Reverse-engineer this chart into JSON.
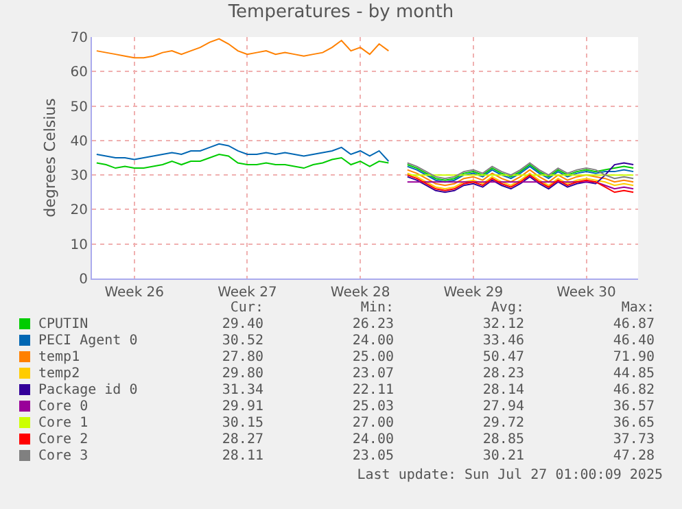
{
  "chart_data": {
    "type": "line",
    "title": "Temperatures - by month",
    "ylabel": "degrees Celsius",
    "categories": [
      null,
      null,
      null,
      null,
      "Week 26",
      null,
      null,
      null,
      null,
      null,
      null,
      null,
      null,
      null,
      null,
      null,
      "Week 27",
      null,
      null,
      null,
      null,
      null,
      null,
      null,
      null,
      null,
      null,
      null,
      "Week 28",
      null,
      null,
      null,
      null,
      null,
      null,
      null,
      null,
      null,
      null,
      null,
      "Week 29",
      null,
      null,
      null,
      null,
      null,
      null,
      null,
      null,
      null,
      null,
      null,
      "Week 30",
      null,
      null,
      null,
      null,
      null
    ],
    "ylim": [
      0,
      70
    ],
    "yticks": [
      0,
      10,
      20,
      30,
      40,
      50,
      60,
      70
    ],
    "grid": true,
    "legend": "bottom",
    "series": [
      {
        "name": "CPUTIN",
        "color": "#00cc00",
        "values": [
          33.5,
          33,
          32,
          32.5,
          32,
          32,
          32.5,
          33,
          34,
          33,
          34,
          34,
          35,
          36,
          35.5,
          33.5,
          33,
          33,
          33.5,
          33,
          33,
          32.5,
          32,
          33,
          33.5,
          34.5,
          35,
          33,
          34,
          32.5,
          34,
          33.5,
          null,
          33,
          32,
          30.5,
          29,
          28.5,
          29,
          30.5,
          31,
          30,
          32,
          30.5,
          29.5,
          31,
          33,
          31,
          29.5,
          31.5,
          30,
          31,
          31.5,
          31,
          31.5,
          32,
          32.5,
          32
        ]
      },
      {
        "name": "PECI Agent 0",
        "color": "#0066b3",
        "values": [
          36,
          35.5,
          35,
          35,
          34.5,
          35,
          35.5,
          36,
          36.5,
          36,
          37,
          37,
          38,
          39,
          38.5,
          37,
          36,
          36,
          36.5,
          36,
          36.5,
          36,
          35.5,
          36,
          36.5,
          37,
          38,
          36,
          37,
          35.5,
          37,
          34,
          null,
          32.5,
          31.5,
          30,
          28.5,
          28,
          28.5,
          30,
          30.5,
          29.5,
          31.5,
          30,
          29,
          30.5,
          32.5,
          30.5,
          29,
          31,
          29.5,
          30.5,
          31,
          30.5,
          31,
          31,
          31.5,
          31
        ]
      },
      {
        "name": "temp1",
        "color": "#ff8000",
        "values": [
          66,
          65.5,
          65,
          64.5,
          64,
          64,
          64.5,
          65.5,
          66,
          65,
          66,
          67,
          68.5,
          69.5,
          68,
          66,
          65,
          65.5,
          66,
          65,
          65.5,
          65,
          64.5,
          65,
          65.5,
          67,
          69,
          66,
          67,
          65,
          68,
          66,
          null,
          31.5,
          30.5,
          29,
          27.5,
          27,
          27.5,
          29,
          29.5,
          28.5,
          30.5,
          29,
          28,
          29.5,
          31.5,
          29.5,
          28,
          30,
          28.5,
          29.5,
          30,
          29.5,
          29,
          28,
          28.5,
          28
        ]
      },
      {
        "name": "temp2",
        "color": "#ffcc00",
        "values": [
          null,
          null,
          null,
          null,
          null,
          null,
          null,
          null,
          null,
          null,
          null,
          null,
          null,
          null,
          null,
          null,
          null,
          null,
          null,
          null,
          null,
          null,
          null,
          null,
          null,
          null,
          null,
          null,
          null,
          null,
          null,
          null,
          null,
          30.5,
          29.5,
          28,
          26.5,
          26,
          26.5,
          28,
          28.5,
          27.5,
          29.5,
          28,
          27,
          28.5,
          30.5,
          28.5,
          27,
          29,
          27.5,
          28.5,
          29,
          28.5,
          28,
          27,
          27.5,
          27
        ]
      },
      {
        "name": "Package id 0",
        "color": "#330099",
        "values": [
          null,
          null,
          null,
          null,
          null,
          null,
          null,
          null,
          null,
          null,
          null,
          null,
          null,
          null,
          null,
          null,
          null,
          null,
          null,
          null,
          null,
          null,
          null,
          null,
          null,
          null,
          null,
          null,
          null,
          null,
          null,
          null,
          null,
          29.5,
          28.5,
          27,
          25.5,
          25,
          25.5,
          27,
          27.5,
          26.5,
          28.5,
          27,
          26,
          27.5,
          29.5,
          27.5,
          26,
          28,
          26.5,
          27.5,
          28,
          27.5,
          30,
          33,
          33.5,
          33
        ]
      },
      {
        "name": "Core 0",
        "color": "#990099",
        "values": [
          null,
          null,
          null,
          null,
          null,
          null,
          null,
          null,
          null,
          null,
          null,
          null,
          null,
          null,
          null,
          null,
          null,
          null,
          null,
          null,
          null,
          null,
          null,
          null,
          null,
          null,
          null,
          null,
          null,
          null,
          null,
          null,
          null,
          28,
          28,
          28,
          28,
          28,
          28,
          28,
          28,
          28,
          28,
          28,
          28,
          28,
          28,
          28,
          28,
          28,
          28,
          28,
          28,
          28,
          27,
          26,
          26.5,
          26
        ]
      },
      {
        "name": "Core 1",
        "color": "#ccff00",
        "values": [
          null,
          null,
          null,
          null,
          null,
          null,
          null,
          null,
          null,
          null,
          null,
          null,
          null,
          null,
          null,
          null,
          null,
          null,
          null,
          null,
          null,
          null,
          null,
          null,
          null,
          null,
          null,
          null,
          null,
          null,
          null,
          null,
          null,
          30,
          30,
          30,
          30,
          30,
          30,
          30,
          30,
          30,
          30,
          30,
          30,
          30,
          30,
          30,
          30,
          30,
          30,
          30,
          30,
          30,
          30,
          30,
          30,
          30
        ]
      },
      {
        "name": "Core 2",
        "color": "#ff0000",
        "values": [
          null,
          null,
          null,
          null,
          null,
          null,
          null,
          null,
          null,
          null,
          null,
          null,
          null,
          null,
          null,
          null,
          null,
          null,
          null,
          null,
          null,
          null,
          null,
          null,
          null,
          null,
          null,
          null,
          null,
          null,
          null,
          null,
          null,
          30,
          29,
          27.5,
          26,
          25.5,
          26,
          27.5,
          28,
          27,
          29,
          27.5,
          26.5,
          28,
          30,
          28,
          26.5,
          28.5,
          27,
          28,
          28.5,
          28,
          26.5,
          25,
          25.5,
          25
        ]
      },
      {
        "name": "Core 3",
        "color": "#808080",
        "values": [
          null,
          null,
          null,
          null,
          null,
          null,
          null,
          null,
          null,
          null,
          null,
          null,
          null,
          null,
          null,
          null,
          null,
          null,
          null,
          null,
          null,
          null,
          null,
          null,
          null,
          null,
          null,
          null,
          null,
          null,
          null,
          null,
          null,
          33.5,
          32.5,
          31,
          29.5,
          29,
          29.5,
          31,
          31.5,
          30.5,
          32.5,
          31,
          30,
          31.5,
          33.5,
          31.5,
          30,
          32,
          30.5,
          31.5,
          32,
          31.5,
          30,
          29,
          29.5,
          29
        ]
      }
    ],
    "annotations": [
      "Cur:",
      "Min:",
      "Avg:",
      "Max:",
      "29.40",
      "26.23",
      "32.12",
      "46.87",
      "30.52",
      "24.00",
      "33.46",
      "46.40",
      "27.80",
      "25.00",
      "50.47",
      "71.90",
      "29.80",
      "23.07",
      "28.23",
      "44.85",
      "31.34",
      "22.11",
      "28.14",
      "46.82",
      "29.91",
      "25.03",
      "27.94",
      "36.57",
      "30.15",
      "27.00",
      "29.72",
      "36.65",
      "28.27",
      "24.00",
      "28.85",
      "37.73",
      "28.11",
      "23.05",
      "30.21",
      "47.28",
      "Last update: Sun Jul 27 01:00:09 2025"
    ]
  }
}
